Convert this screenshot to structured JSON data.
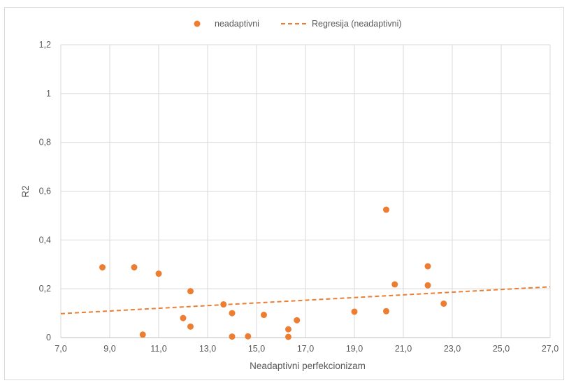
{
  "chart_data": {
    "type": "scatter",
    "title": "",
    "xlabel": "Neadaptivni perfekcionizam",
    "ylabel": "R2",
    "xlim": [
      7,
      27
    ],
    "ylim": [
      0,
      1.2
    ],
    "x_ticks": [
      7,
      9,
      11,
      13,
      15,
      17,
      19,
      21,
      23,
      25,
      27
    ],
    "x_tick_labels": [
      "7,0",
      "9,0",
      "11,0",
      "13,0",
      "15,0",
      "17,0",
      "19,0",
      "21,0",
      "23,0",
      "25,0",
      "27,0"
    ],
    "y_ticks": [
      0,
      0.2,
      0.4,
      0.6,
      0.8,
      1,
      1.2
    ],
    "y_tick_labels": [
      "0",
      "0,2",
      "0,4",
      "0,6",
      "0,8",
      "1",
      "1,2"
    ],
    "grid": true,
    "legend_position": "top",
    "colors": {
      "series": "#ED7D31",
      "grid": "#D9D9D9",
      "text": "#595959"
    },
    "series": [
      {
        "name": "neadaptivni",
        "kind": "scatter",
        "points": [
          {
            "x": 8.7,
            "y": 0.288
          },
          {
            "x": 10.0,
            "y": 0.288
          },
          {
            "x": 11.0,
            "y": 0.262
          },
          {
            "x": 10.35,
            "y": 0.012
          },
          {
            "x": 12.3,
            "y": 0.19
          },
          {
            "x": 12.0,
            "y": 0.08
          },
          {
            "x": 12.3,
            "y": 0.045
          },
          {
            "x": 13.65,
            "y": 0.136
          },
          {
            "x": 14.0,
            "y": 0.1
          },
          {
            "x": 14.0,
            "y": 0.004
          },
          {
            "x": 14.65,
            "y": 0.005
          },
          {
            "x": 15.3,
            "y": 0.093
          },
          {
            "x": 16.3,
            "y": 0.034
          },
          {
            "x": 16.3,
            "y": 0.003
          },
          {
            "x": 16.65,
            "y": 0.071
          },
          {
            "x": 19.0,
            "y": 0.106
          },
          {
            "x": 20.3,
            "y": 0.524
          },
          {
            "x": 20.3,
            "y": 0.108
          },
          {
            "x": 20.65,
            "y": 0.218
          },
          {
            "x": 22.0,
            "y": 0.292
          },
          {
            "x": 22.0,
            "y": 0.214
          },
          {
            "x": 22.65,
            "y": 0.139
          }
        ]
      },
      {
        "name": "Regresija (neadaptivni)",
        "kind": "trendline",
        "points": [
          {
            "x": 7.0,
            "y": 0.098
          },
          {
            "x": 27.0,
            "y": 0.208
          }
        ]
      }
    ]
  }
}
